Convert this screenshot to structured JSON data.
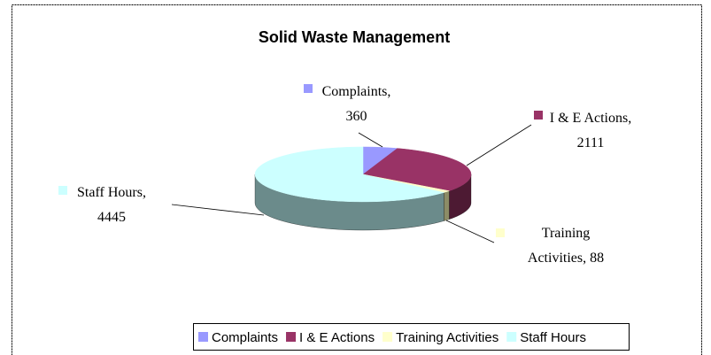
{
  "chart_data": {
    "type": "pie3d",
    "title": "Solid Waste Management",
    "categories": [
      "Complaints",
      "I & E Actions",
      "Training Activities",
      "Staff Hours"
    ],
    "values": [
      360,
      2111,
      88,
      4445
    ],
    "colors": [
      "#9999ff",
      "#993366",
      "#ffffcc",
      "#ccffff"
    ],
    "side_colors": [
      "#5c5c99",
      "#4d1a33",
      "#8c8c66",
      "#6b8b8b"
    ],
    "label_separator": ",",
    "legend": "bottom"
  }
}
